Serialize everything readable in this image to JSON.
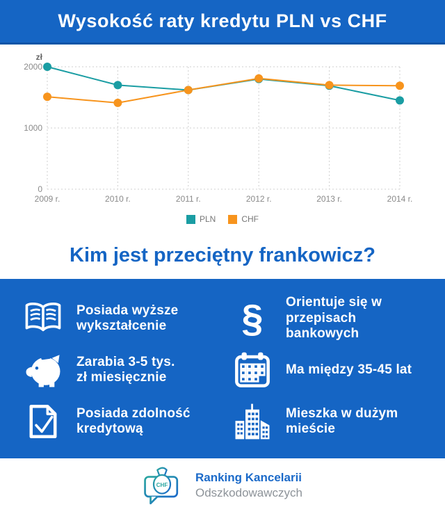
{
  "header": {
    "title": "Wysokość raty kredytu PLN vs CHF"
  },
  "chart_data": {
    "type": "line",
    "x": [
      "2009 r.",
      "2010 r.",
      "2011 r.",
      "2012 r.",
      "2013 r.",
      "2014 r."
    ],
    "series": [
      {
        "name": "PLN",
        "color": "#1a9da3",
        "values": [
          2000,
          1700,
          1620,
          1800,
          1690,
          1450
        ]
      },
      {
        "name": "CHF",
        "color": "#f7941d",
        "values": [
          1510,
          1410,
          1620,
          1810,
          1700,
          1690
        ]
      }
    ],
    "ylabel": "zł",
    "xlabel": "",
    "yticks": [
      0,
      1000,
      2000
    ],
    "ylim": [
      0,
      2000
    ],
    "grid": true,
    "legend_position": "bottom"
  },
  "subheading": {
    "title": "Kim jest przeciętny frankowicz?"
  },
  "facts": {
    "items": [
      {
        "icon": "open-book-icon",
        "label": "Posiada wyższe\nwykształcenie"
      },
      {
        "icon": "paragraph-icon",
        "label": "Orientuje się w\nprzepisach bankowych"
      },
      {
        "icon": "piggy-bank-icon",
        "label": "Zarabia 3-5 tys.\nzł miesięcznie"
      },
      {
        "icon": "calendar-icon",
        "label": "Ma między 35-45 lat"
      },
      {
        "icon": "document-check-icon",
        "label": "Posiada zdolność\nkredytową"
      },
      {
        "icon": "city-buildings-icon",
        "label": "Mieszka w dużym\nmieście"
      }
    ]
  },
  "footer": {
    "logo_badge": "CHF",
    "brand_line1": "Ranking Kancelarii",
    "brand_line2": "Odszkodowawczych"
  },
  "colors": {
    "primary_blue": "#1565c4",
    "dark_blue_edge": "#0d55a7",
    "teal": "#1a9da3",
    "orange": "#f7941d"
  }
}
